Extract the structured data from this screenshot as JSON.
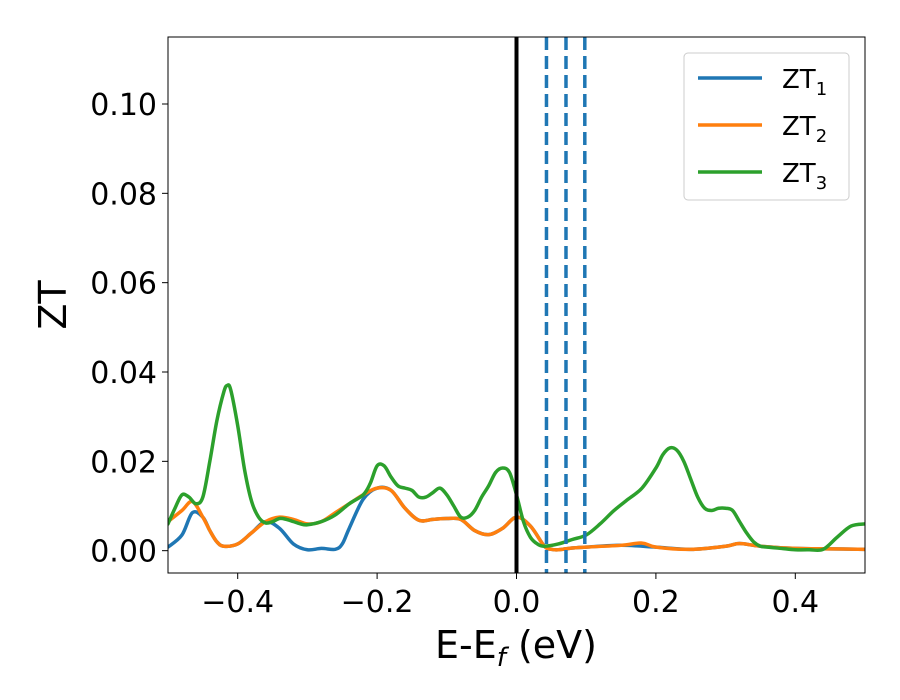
{
  "chart_data": {
    "type": "line",
    "xlabel": "E-E",
    "xlabel_sub": "f",
    "xlabel_unit": " (eV)",
    "ylabel": "ZT",
    "xlim": [
      -0.5,
      0.5
    ],
    "ylim": [
      -0.005,
      0.115
    ],
    "xticks": [
      -0.4,
      -0.2,
      0.0,
      0.2,
      0.4
    ],
    "xtick_labels": [
      "−0.4",
      "−0.2",
      "0.0",
      "0.2",
      "0.4"
    ],
    "yticks": [
      0.0,
      0.02,
      0.04,
      0.06,
      0.08,
      0.1
    ],
    "ytick_labels": [
      "0.00",
      "0.02",
      "0.04",
      "0.06",
      "0.08",
      "0.10"
    ],
    "grid": false,
    "legend_position": "top-right",
    "vertical_lines": [
      {
        "x": 0.0,
        "style": "solid",
        "color": "#000000"
      },
      {
        "x": 0.043,
        "style": "dashed",
        "color": "#1f77b4"
      },
      {
        "x": 0.071,
        "style": "dashed",
        "color": "#1f77b4"
      },
      {
        "x": 0.098,
        "style": "dashed",
        "color": "#1f77b4"
      }
    ],
    "series": [
      {
        "name": "ZT",
        "subscript": "1",
        "color": "#1f77b4",
        "x": [
          -0.5,
          -0.48,
          -0.465,
          -0.45,
          -0.44,
          -0.43,
          -0.42,
          -0.4,
          -0.38,
          -0.36,
          -0.34,
          -0.32,
          -0.3,
          -0.28,
          -0.26,
          -0.25,
          -0.24,
          -0.22,
          -0.2,
          -0.18,
          -0.16,
          -0.14,
          -0.12,
          -0.1,
          -0.08,
          -0.06,
          -0.04,
          -0.02,
          0.0,
          0.02,
          0.04,
          0.05,
          0.06,
          0.08,
          0.1,
          0.15,
          0.2,
          0.25,
          0.3,
          0.32,
          0.35,
          0.4,
          0.45,
          0.5
        ],
        "y": [
          0.0008,
          0.0035,
          0.0085,
          0.0075,
          0.0045,
          0.002,
          0.001,
          0.0015,
          0.004,
          0.0065,
          0.005,
          0.0015,
          0.0002,
          0.0005,
          0.0003,
          0.0015,
          0.005,
          0.0115,
          0.014,
          0.0135,
          0.0095,
          0.0068,
          0.007,
          0.0072,
          0.007,
          0.0045,
          0.0036,
          0.005,
          0.0075,
          0.0055,
          0.001,
          0.0003,
          0.0002,
          0.0006,
          0.0008,
          0.0012,
          0.0008,
          0.0003,
          0.001,
          0.0016,
          0.001,
          0.0005,
          0.0004,
          0.0003
        ]
      },
      {
        "name": "ZT",
        "subscript": "2",
        "color": "#ff7f0e",
        "x": [
          -0.5,
          -0.48,
          -0.465,
          -0.45,
          -0.44,
          -0.43,
          -0.42,
          -0.4,
          -0.38,
          -0.36,
          -0.34,
          -0.32,
          -0.3,
          -0.28,
          -0.26,
          -0.24,
          -0.22,
          -0.2,
          -0.18,
          -0.16,
          -0.14,
          -0.12,
          -0.1,
          -0.08,
          -0.06,
          -0.04,
          -0.02,
          0.0,
          0.02,
          0.04,
          0.05,
          0.06,
          0.08,
          0.1,
          0.15,
          0.18,
          0.2,
          0.25,
          0.3,
          0.32,
          0.35,
          0.4,
          0.45,
          0.5
        ],
        "y": [
          0.0065,
          0.009,
          0.011,
          0.0075,
          0.0045,
          0.002,
          0.001,
          0.0015,
          0.004,
          0.0065,
          0.0075,
          0.007,
          0.006,
          0.0065,
          0.0085,
          0.0105,
          0.0125,
          0.014,
          0.0135,
          0.0095,
          0.0068,
          0.007,
          0.0072,
          0.007,
          0.0045,
          0.0036,
          0.005,
          0.0075,
          0.0055,
          0.001,
          0.0003,
          0.0002,
          0.0006,
          0.0008,
          0.0012,
          0.0017,
          0.0008,
          0.0003,
          0.001,
          0.0016,
          0.001,
          0.0005,
          0.0004,
          0.0003
        ]
      },
      {
        "name": "ZT",
        "subscript": "3",
        "color": "#2ca02c",
        "x": [
          -0.5,
          -0.49,
          -0.48,
          -0.47,
          -0.46,
          -0.45,
          -0.44,
          -0.43,
          -0.42,
          -0.415,
          -0.41,
          -0.4,
          -0.39,
          -0.38,
          -0.37,
          -0.36,
          -0.35,
          -0.34,
          -0.33,
          -0.32,
          -0.31,
          -0.3,
          -0.28,
          -0.26,
          -0.24,
          -0.22,
          -0.21,
          -0.2,
          -0.19,
          -0.18,
          -0.17,
          -0.16,
          -0.15,
          -0.14,
          -0.13,
          -0.12,
          -0.11,
          -0.1,
          -0.09,
          -0.08,
          -0.07,
          -0.06,
          -0.05,
          -0.04,
          -0.03,
          -0.02,
          -0.01,
          0.0,
          0.01,
          0.02,
          0.03,
          0.04,
          0.06,
          0.08,
          0.1,
          0.12,
          0.14,
          0.16,
          0.18,
          0.2,
          0.21,
          0.22,
          0.23,
          0.24,
          0.25,
          0.26,
          0.27,
          0.28,
          0.29,
          0.3,
          0.31,
          0.32,
          0.33,
          0.34,
          0.35,
          0.36,
          0.38,
          0.4,
          0.42,
          0.44,
          0.46,
          0.48,
          0.5
        ],
        "y": [
          0.006,
          0.0095,
          0.0125,
          0.012,
          0.0105,
          0.012,
          0.02,
          0.029,
          0.0355,
          0.037,
          0.036,
          0.028,
          0.018,
          0.011,
          0.0075,
          0.0062,
          0.0065,
          0.0072,
          0.007,
          0.0065,
          0.006,
          0.0058,
          0.0065,
          0.008,
          0.0105,
          0.0125,
          0.015,
          0.019,
          0.019,
          0.0165,
          0.0145,
          0.014,
          0.0135,
          0.012,
          0.012,
          0.013,
          0.014,
          0.0125,
          0.01,
          0.0075,
          0.0075,
          0.009,
          0.012,
          0.0145,
          0.0175,
          0.0185,
          0.0175,
          0.0125,
          0.0065,
          0.003,
          0.0015,
          0.001,
          0.0015,
          0.0025,
          0.0035,
          0.006,
          0.009,
          0.0115,
          0.014,
          0.0185,
          0.0215,
          0.023,
          0.0225,
          0.02,
          0.016,
          0.012,
          0.0095,
          0.009,
          0.0095,
          0.0095,
          0.009,
          0.0065,
          0.004,
          0.002,
          0.001,
          0.0008,
          0.0005,
          0.0002,
          0.0002,
          0.0003,
          0.003,
          0.0055,
          0.006
        ]
      }
    ]
  }
}
